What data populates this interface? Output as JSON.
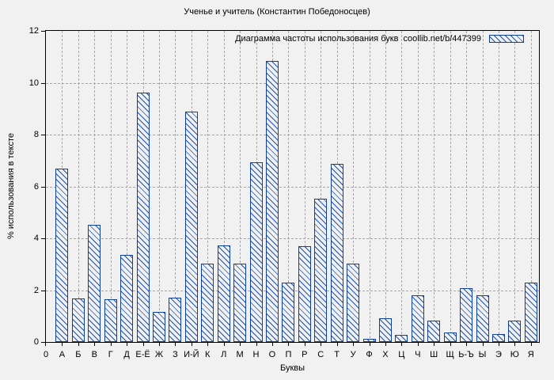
{
  "colors": {
    "bar_border": "#0d3fa4",
    "bar_hatch": "#1c52b0",
    "bar_fill": "#f1f1f1",
    "background": "#f1f1f1",
    "grid": "#a6a6a6",
    "axis": "#000000",
    "text": "#000000"
  },
  "chart_data": {
    "type": "bar",
    "title": "Ученье и учитель (Константин Победоносцев)",
    "xlabel": "Буквы",
    "ylabel": "% использования в тексте",
    "legend": "Диаграмма частоты использования букв  coollib.net/b/447399",
    "legend_position": "top-right-inside",
    "legend_swatch": "blue-diagonal-hatch",
    "grid": true,
    "grid_style": "dashed",
    "bar_style": "diagonal-hatch",
    "ylim": [
      0,
      12
    ],
    "y_ticks": [
      "0",
      "2",
      "4",
      "6",
      "8",
      "10",
      "12"
    ],
    "origin_tick_label": "0",
    "categories": [
      "А",
      "Б",
      "В",
      "Г",
      "Д",
      "Е-Ё",
      "Ж",
      "З",
      "И-Й",
      "К",
      "Л",
      "М",
      "Н",
      "О",
      "П",
      "Р",
      "С",
      "Т",
      "У",
      "Ф",
      "Х",
      "Ц",
      "Ч",
      "Ш",
      "Щ",
      "Ь-Ъ",
      "Ы",
      "Э",
      "Ю",
      "Я"
    ],
    "values": [
      6.7,
      1.68,
      4.53,
      1.65,
      3.37,
      9.62,
      1.16,
      1.7,
      8.88,
      3.02,
      3.72,
      3.02,
      6.92,
      10.85,
      2.28,
      3.69,
      5.52,
      6.86,
      3.01,
      0.12,
      0.91,
      0.27,
      1.79,
      0.81,
      0.38,
      2.07,
      1.79,
      0.32,
      0.82,
      2.29
    ]
  }
}
